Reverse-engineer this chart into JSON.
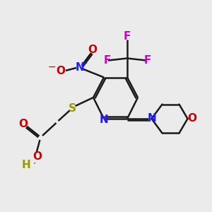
{
  "bg_color": "#ebebeb",
  "bond_color": "#1a1a1a",
  "N_color": "#2020ee",
  "O_color": "#cc0000",
  "S_color": "#999900",
  "F_color": "#cc00cc",
  "H_color": "#999900",
  "figsize": [
    3.0,
    3.0
  ],
  "dpi": 100,
  "xlim": [
    0,
    10
  ],
  "ylim": [
    0,
    10
  ],
  "lw": 1.8,
  "fs": 11
}
